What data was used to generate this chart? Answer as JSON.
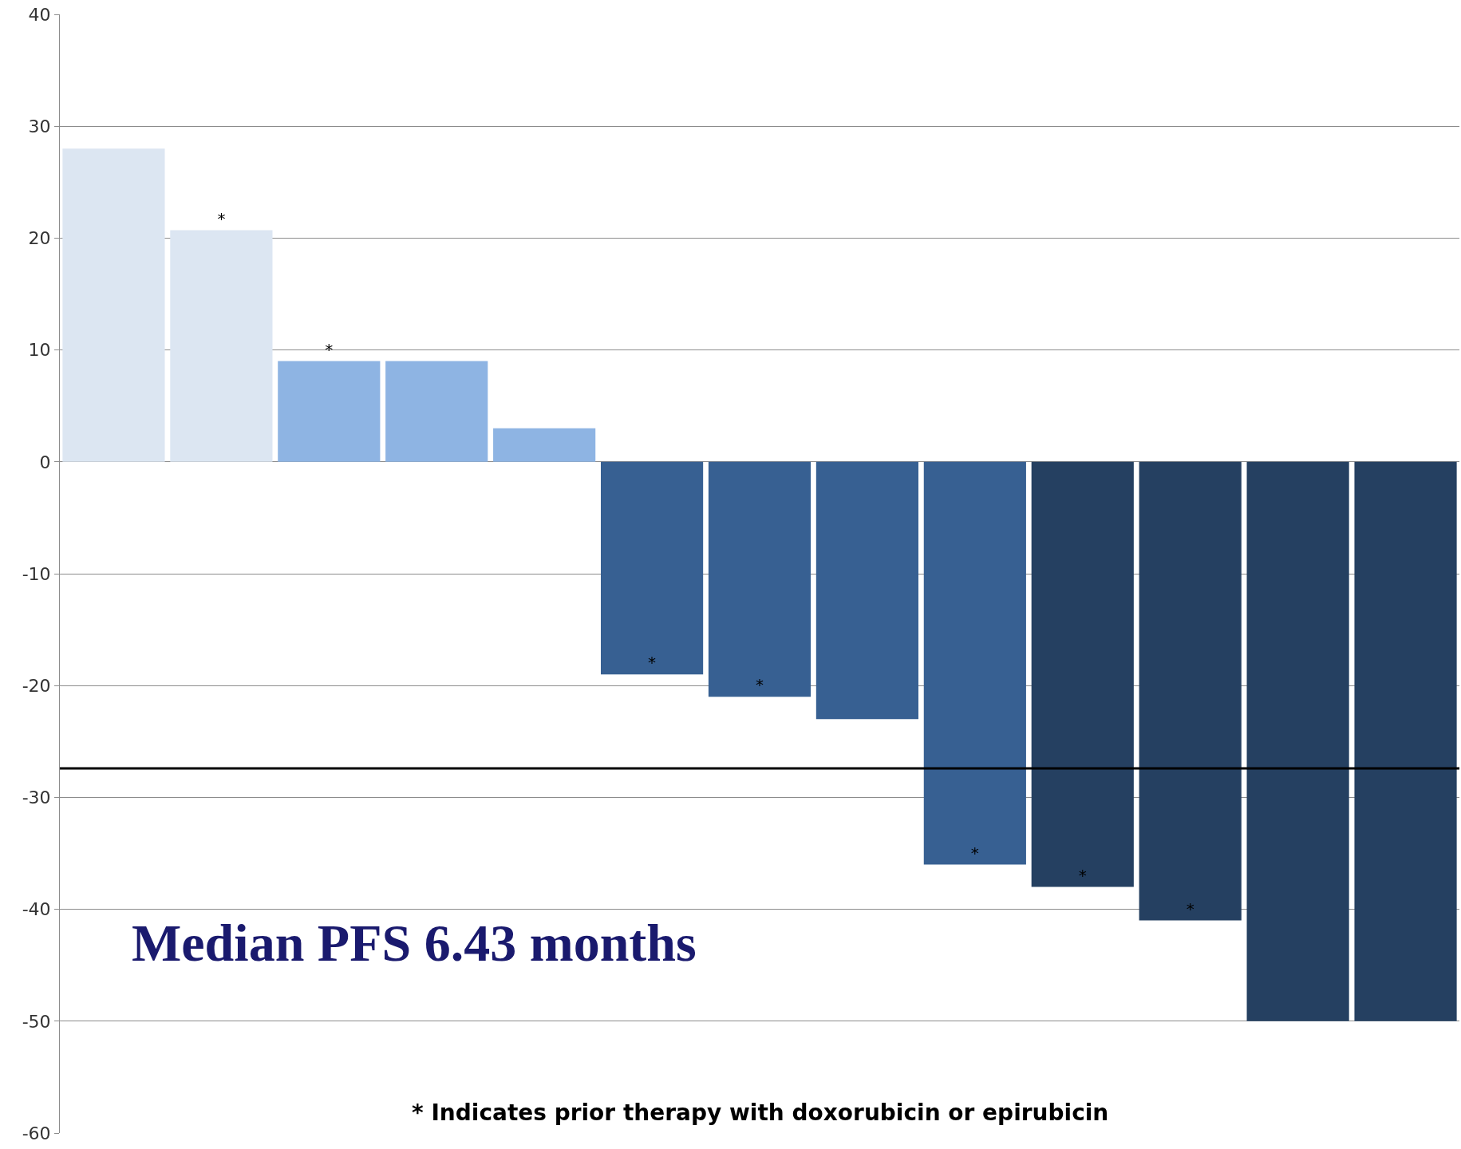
{
  "chart_data": {
    "type": "bar",
    "categories": [
      null,
      null,
      null,
      null,
      null,
      null,
      null,
      null,
      null,
      null,
      null,
      null,
      null
    ],
    "values": [
      28,
      20.7,
      9,
      9,
      3,
      -19,
      -21,
      -23,
      -36,
      -38,
      -41,
      -50,
      -50
    ],
    "colors": [
      "#dce6f2",
      "#dce6f2",
      "#8eb4e3",
      "#8eb4e3",
      "#8eb4e3",
      "#376092",
      "#376092",
      "#376092",
      "#376092",
      "#254061",
      "#254061",
      "#254061",
      "#254061"
    ],
    "value_labels": [
      null,
      "*",
      "*",
      null,
      null,
      "*",
      "*",
      null,
      "*",
      "*",
      "*",
      null,
      null
    ],
    "ylim": [
      -60,
      40
    ],
    "yticks": [
      -60,
      -50,
      -40,
      -30,
      -20,
      -10,
      0,
      10,
      20,
      30,
      40
    ],
    "grid": "y",
    "tick_labels": "y",
    "ref_lines": [
      {
        "axis": "y",
        "value": -27.4,
        "color": "#000000"
      }
    ],
    "annotations": [
      "Median PFS 6.43 months",
      "* Indicates prior therapy with doxorubicin or epirubicin"
    ]
  }
}
